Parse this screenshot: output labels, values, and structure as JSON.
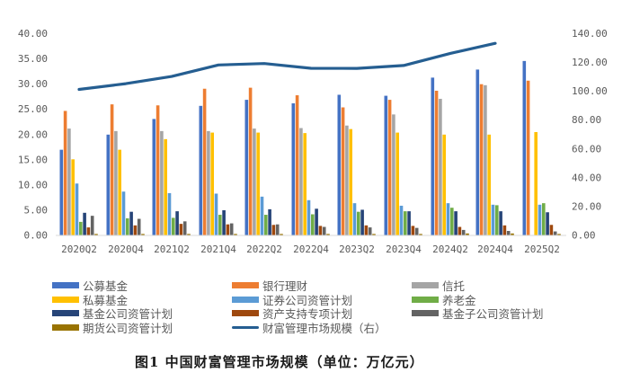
{
  "chart_data": {
    "type": "bar",
    "title": "图1 中国财富管理市场规模（单位：万亿元）",
    "xlabel": "",
    "ylabel": "",
    "ylabel_right": "",
    "ylim": [
      0,
      40
    ],
    "ylim_right": [
      0,
      140
    ],
    "yticks": [
      "0.00",
      "5.00",
      "10.00",
      "15.00",
      "20.00",
      "25.00",
      "30.00",
      "35.00",
      "40.00"
    ],
    "yticks_right": [
      "0.00",
      "20.00",
      "40.00",
      "60.00",
      "80.00",
      "100.00",
      "120.00",
      "140.00"
    ],
    "grid": false,
    "legend_position": "bottom",
    "categories": [
      "2020Q2",
      "2020Q4",
      "2021Q2",
      "2021Q4",
      "2022Q2",
      "2022Q4",
      "2023Q2",
      "2023Q4",
      "2024Q2",
      "2024Q4",
      "2025Q2"
    ],
    "series": [
      {
        "name": "公募基金",
        "type": "bar",
        "color": "#4472C4",
        "values": [
          16.9,
          19.9,
          23.0,
          25.6,
          26.8,
          26.1,
          27.8,
          27.6,
          31.2,
          32.8,
          34.5
        ]
      },
      {
        "name": "银行理财",
        "type": "bar",
        "color": "#ED7D31",
        "values": [
          24.6,
          25.9,
          25.7,
          29.0,
          29.2,
          27.7,
          25.3,
          26.8,
          28.6,
          29.9,
          30.6
        ]
      },
      {
        "name": "信托",
        "type": "bar",
        "color": "#A5A5A5",
        "values": [
          21.1,
          20.6,
          20.6,
          20.6,
          21.1,
          21.2,
          21.7,
          23.9,
          27.0,
          29.7,
          null
        ]
      },
      {
        "name": "私募基金",
        "type": "bar",
        "color": "#FFC000",
        "values": [
          15.0,
          16.9,
          19.0,
          20.3,
          20.3,
          20.2,
          21.0,
          20.3,
          19.9,
          19.9,
          20.4
        ]
      },
      {
        "name": "证券公司资管计划",
        "type": "bar",
        "color": "#5B9BD5",
        "values": [
          10.2,
          8.6,
          8.3,
          8.2,
          7.6,
          6.9,
          6.3,
          5.8,
          6.3,
          6.0,
          6.0
        ]
      },
      {
        "name": "养老金",
        "type": "bar",
        "color": "#70AD47",
        "values": [
          2.6,
          3.3,
          3.4,
          4.0,
          4.0,
          4.1,
          4.6,
          4.7,
          5.4,
          5.9,
          6.3
        ]
      },
      {
        "name": "基金公司资管计划",
        "type": "bar",
        "color": "#264478",
        "values": [
          4.4,
          4.6,
          4.7,
          4.9,
          5.1,
          5.2,
          5.0,
          4.7,
          4.7,
          4.7,
          4.5
        ]
      },
      {
        "name": "资产支持专项计划",
        "type": "bar",
        "color": "#9E480E",
        "values": [
          1.5,
          1.9,
          2.2,
          2.1,
          2.0,
          1.8,
          1.9,
          1.8,
          1.6,
          1.9,
          2.0
        ]
      },
      {
        "name": "基金子公司资管计划",
        "type": "bar",
        "color": "#636363",
        "values": [
          3.8,
          3.2,
          2.7,
          2.3,
          2.1,
          1.6,
          1.5,
          1.4,
          1.0,
          0.8,
          0.7
        ]
      },
      {
        "name": "期货公司资管计划",
        "type": "bar",
        "color": "#997300",
        "values": [
          0.2,
          0.2,
          0.2,
          0.2,
          0.2,
          0.2,
          0.2,
          0.2,
          0.3,
          0.3,
          0.2
        ]
      },
      {
        "name": "财富管理市场规模（右）",
        "type": "line",
        "axis": "right",
        "color": "#255E91",
        "values": [
          101.0,
          105.0,
          110.0,
          118.0,
          119.0,
          115.7,
          115.6,
          117.6,
          126.0,
          133.0,
          null
        ]
      }
    ]
  },
  "legend": [
    {
      "label": "公募基金",
      "color": "#4472C4",
      "kind": "bar"
    },
    {
      "label": "银行理财",
      "color": "#ED7D31",
      "kind": "bar"
    },
    {
      "label": "信托",
      "color": "#A5A5A5",
      "kind": "bar"
    },
    {
      "label": "私募基金",
      "color": "#FFC000",
      "kind": "bar"
    },
    {
      "label": "证券公司资管计划",
      "color": "#5B9BD5",
      "kind": "bar"
    },
    {
      "label": "养老金",
      "color": "#70AD47",
      "kind": "bar"
    },
    {
      "label": "基金公司资管计划",
      "color": "#264478",
      "kind": "bar"
    },
    {
      "label": "资产支持专项计划",
      "color": "#9E480E",
      "kind": "bar"
    },
    {
      "label": "基金子公司资管计划",
      "color": "#636363",
      "kind": "bar"
    },
    {
      "label": "期货公司资管计划",
      "color": "#997300",
      "kind": "bar"
    },
    {
      "label": "财富管理市场规模（右）",
      "color": "#255E91",
      "kind": "line"
    }
  ],
  "caption": "图1  中国财富管理市场规模（单位：万亿元）"
}
